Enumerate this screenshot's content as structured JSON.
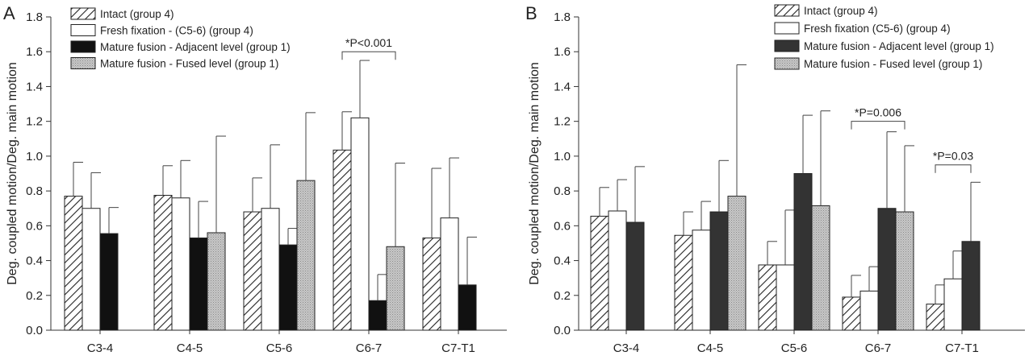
{
  "figure": {
    "panels": [
      "A",
      "B"
    ]
  },
  "chart_data": [
    {
      "type": "bar",
      "panel": "A",
      "title": "",
      "xlabel": "",
      "ylabel": "Deg. coupled motion/Deg. main motion",
      "ylim": [
        0,
        1.8
      ],
      "yticks": [
        "0.0",
        "0.2",
        "0.4",
        "0.6",
        "0.8",
        "1.0",
        "1.2",
        "1.4",
        "1.6",
        "1.8"
      ],
      "categories": [
        "C3-4",
        "C4-5",
        "C5-6",
        "C6-7",
        "C7-T1"
      ],
      "legend_position": "top-left",
      "grid": false,
      "series": [
        {
          "name": "Intact (group 4)",
          "pattern": "diagonal-hatch",
          "values": [
            0.77,
            0.775,
            0.68,
            1.035,
            0.53
          ],
          "error_upper": [
            0.965,
            0.945,
            0.875,
            1.255,
            0.93
          ]
        },
        {
          "name": "Fresh fixation - (C5-6) (group 4)",
          "pattern": "white",
          "values": [
            0.7,
            0.76,
            0.7,
            1.22,
            0.645
          ],
          "error_upper": [
            0.905,
            0.975,
            1.065,
            1.55,
            0.99
          ]
        },
        {
          "name": "Mature fusion - Adjacent level (group 1)",
          "pattern": "black",
          "values": [
            0.555,
            0.53,
            0.49,
            0.17,
            0.26
          ],
          "error_upper": [
            0.705,
            0.74,
            0.585,
            0.32,
            0.535
          ]
        },
        {
          "name": "Mature fusion - Fused level (group 1)",
          "pattern": "light-stipple",
          "values": [
            null,
            0.56,
            0.86,
            0.48,
            null
          ],
          "error_upper": [
            null,
            1.115,
            1.25,
            0.96,
            null
          ]
        }
      ],
      "annotations": [
        {
          "text": "*P<0.001",
          "category": "C6-7",
          "from_series": 0,
          "to_series": 3,
          "y": 1.6
        }
      ]
    },
    {
      "type": "bar",
      "panel": "B",
      "title": "",
      "xlabel": "",
      "ylabel": "Deg. coupled motion/Deg. main motion",
      "ylim": [
        0,
        1.8
      ],
      "yticks": [
        "0.0",
        "0.2",
        "0.4",
        "0.6",
        "0.8",
        "1.0",
        "1.2",
        "1.4",
        "1.6",
        "1.8"
      ],
      "categories": [
        "C3-4",
        "C4-5",
        "C5-6",
        "C6-7",
        "C7-T1"
      ],
      "legend_position": "top-right",
      "grid": false,
      "series": [
        {
          "name": "Intact (group 4)",
          "pattern": "diagonal-hatch",
          "values": [
            0.655,
            0.545,
            0.375,
            0.19,
            0.15
          ],
          "error_upper": [
            0.82,
            0.68,
            0.51,
            0.315,
            0.26
          ]
        },
        {
          "name": "Fresh fixation (C5-6) (group 4)",
          "pattern": "white",
          "values": [
            0.685,
            0.575,
            0.375,
            0.225,
            0.295
          ],
          "error_upper": [
            0.865,
            0.74,
            0.69,
            0.365,
            0.455
          ]
        },
        {
          "name": "Mature fusion - Adjacent level (group 1)",
          "pattern": "dark-gray",
          "values": [
            0.62,
            0.68,
            0.9,
            0.7,
            0.51
          ],
          "error_upper": [
            0.94,
            0.975,
            1.235,
            1.14,
            0.85
          ]
        },
        {
          "name": "Mature fusion - Fused level (group 1)",
          "pattern": "light-stipple",
          "values": [
            null,
            0.77,
            0.715,
            0.68,
            null
          ],
          "error_upper": [
            null,
            1.525,
            1.26,
            1.06,
            null
          ]
        }
      ],
      "annotations": [
        {
          "text": "*P=0.006",
          "category": "C6-7",
          "from_series": 0,
          "to_series": 3,
          "y": 1.2
        },
        {
          "text": "*P=0.03",
          "category": "C7-T1",
          "from_series": 0,
          "to_series": 2,
          "y": 0.95
        }
      ]
    }
  ]
}
